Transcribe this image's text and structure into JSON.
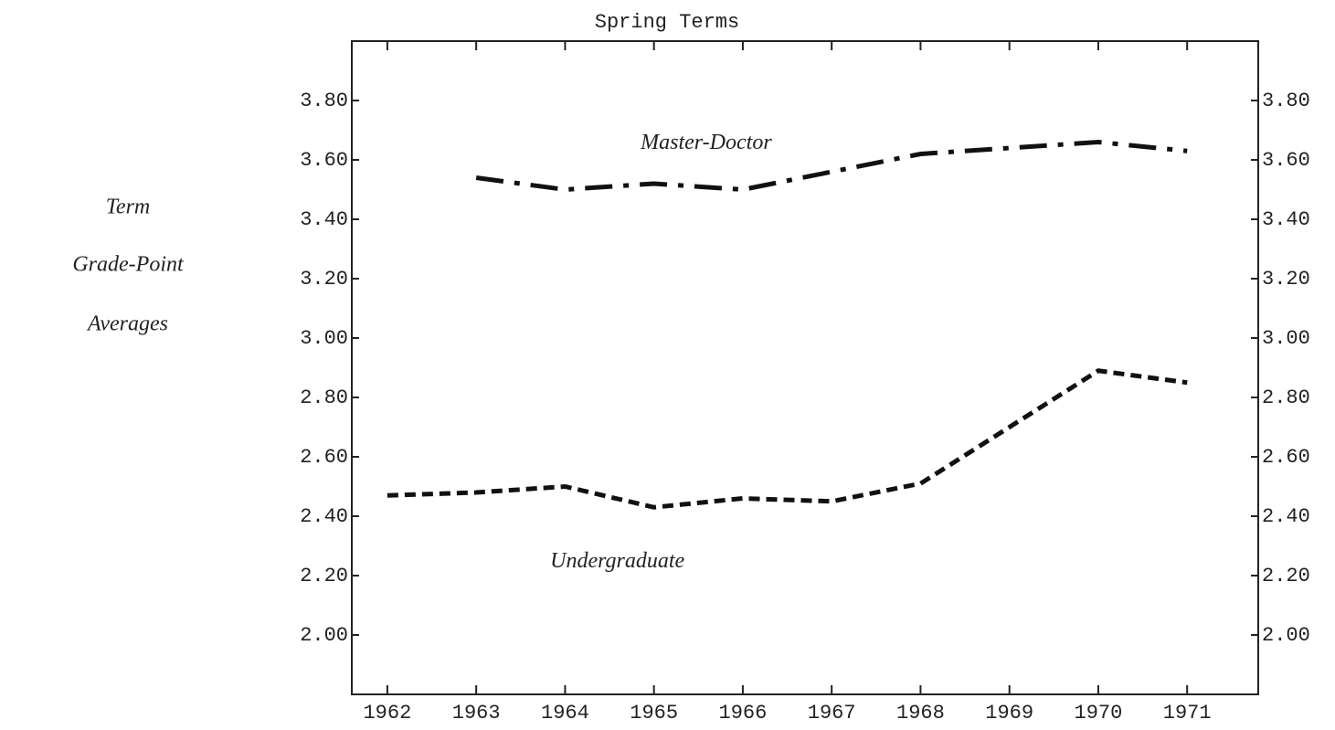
{
  "chart_data": {
    "type": "line",
    "title": "Spring Terms",
    "ylabel": [
      "Term",
      "Grade-Point",
      "Averages"
    ],
    "x": [
      1962,
      1963,
      1964,
      1965,
      1966,
      1967,
      1968,
      1969,
      1970,
      1971
    ],
    "series": [
      {
        "name": "Master-Doctor",
        "color": "#111111",
        "linestyle": "dashdot",
        "values": [
          null,
          3.54,
          3.5,
          3.52,
          3.5,
          3.56,
          3.62,
          3.64,
          3.66,
          3.63
        ]
      },
      {
        "name": "Undergraduate",
        "color": "#111111",
        "linestyle": "dashed",
        "values": [
          2.47,
          2.48,
          2.5,
          2.43,
          2.46,
          2.45,
          2.51,
          2.7,
          2.89,
          2.85
        ]
      }
    ],
    "xlim": [
      1961.6,
      1971.8
    ],
    "xticks": [
      1962,
      1963,
      1964,
      1965,
      1966,
      1967,
      1968,
      1969,
      1970,
      1971
    ],
    "ylim": [
      1.8,
      4.0
    ],
    "yticks": [
      {
        "value": 2.0,
        "label": "2.00"
      },
      {
        "value": 2.2,
        "label": "2.20"
      },
      {
        "value": 2.4,
        "label": "2.40"
      },
      {
        "value": 2.6,
        "label": "2.60"
      },
      {
        "value": 2.8,
        "label": "2.80"
      },
      {
        "value": 3.0,
        "label": "3.00"
      },
      {
        "value": 3.2,
        "label": "3.20"
      },
      {
        "value": 3.4,
        "label": "3.40"
      },
      {
        "value": 3.6,
        "label": "3.60"
      },
      {
        "value": 3.8,
        "label": "3.80"
      }
    ],
    "grid": false
  }
}
